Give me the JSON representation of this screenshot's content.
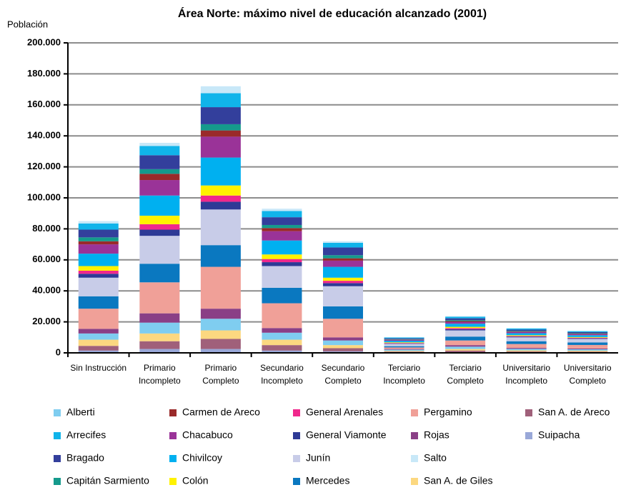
{
  "chart_data": {
    "type": "bar",
    "stacked": true,
    "title": "Área Norte: máximo nivel de educación alcanzado (2001)",
    "y_label": "Población",
    "categories": [
      "Sin Instrucción",
      "Primario Incompleto",
      "Primario Completo",
      "Secundario Incompleto",
      "Secundario Completo",
      "Terciario Incompleto",
      "Terciario Completo",
      "Universitario Incompleto",
      "Universitario Completo"
    ],
    "ylim": [
      0,
      200000
    ],
    "yticks": [
      0,
      {
        "value": 20000,
        "label": "20.000"
      },
      {
        "value": 40000,
        "label": "40.000"
      },
      {
        "value": 60000,
        "label": "60.000"
      },
      {
        "value": 80000,
        "label": "80.000"
      },
      {
        "value": 100000,
        "label": "100.000"
      },
      {
        "value": 120000,
        "label": "120.000"
      },
      {
        "value": 140000,
        "label": "140.000"
      },
      {
        "value": 160000,
        "label": "160.000"
      },
      {
        "value": 180000,
        "label": "180.000"
      },
      {
        "value": 200000,
        "label": "200.000"
      }
    ],
    "grid": true,
    "legend": "bottom",
    "series": [
      {
        "name": "Suipacha",
        "color": "#99a8d8",
        "values": [
          1500,
          2500,
          2500,
          1500,
          1000,
          300,
          500,
          300,
          300
        ]
      },
      {
        "name": "San A. de Areco",
        "color": "#a0607a",
        "values": [
          3000,
          5000,
          6500,
          3500,
          2000,
          500,
          1000,
          600,
          500
        ]
      },
      {
        "name": "San A. de Giles",
        "color": "#fcd880",
        "values": [
          4000,
          5000,
          5500,
          3500,
          2000,
          500,
          1000,
          700,
          600
        ]
      },
      {
        "name": "Alberti",
        "color": "#7fcdf0",
        "values": [
          4000,
          7000,
          7500,
          4500,
          3000,
          800,
          1500,
          1000,
          900
        ]
      },
      {
        "name": "Rojas",
        "color": "#8a3f86",
        "values": [
          3000,
          6000,
          6500,
          3000,
          2000,
          400,
          1000,
          600,
          500
        ]
      },
      {
        "name": "Pergamino",
        "color": "#f0a098",
        "values": [
          13000,
          20000,
          27000,
          16000,
          12000,
          1000,
          3000,
          2500,
          2300
        ]
      },
      {
        "name": "Mercedes",
        "color": "#0a78c0",
        "values": [
          8000,
          12000,
          14000,
          10000,
          8000,
          800,
          2500,
          1800,
          1600
        ]
      },
      {
        "name": "Junín",
        "color": "#c8cce8",
        "values": [
          12000,
          18000,
          23000,
          14000,
          13000,
          1500,
          4000,
          2500,
          2300
        ]
      },
      {
        "name": "General Viamonte",
        "color": "#2e3a96",
        "values": [
          2500,
          4000,
          5000,
          2500,
          2000,
          300,
          800,
          500,
          400
        ]
      },
      {
        "name": "General Arenales",
        "color": "#f0288c",
        "values": [
          2000,
          3500,
          4000,
          2000,
          1500,
          300,
          700,
          400,
          400
        ]
      },
      {
        "name": "Colón",
        "color": "#fff200",
        "values": [
          3000,
          5500,
          6500,
          3000,
          2000,
          400,
          800,
          500,
          400
        ]
      },
      {
        "name": "Chivilcoy",
        "color": "#00b0f0",
        "values": [
          8000,
          13000,
          18000,
          9000,
          7000,
          1000,
          2000,
          1300,
          1200
        ]
      },
      {
        "name": "Chacabuco",
        "color": "#9a3398",
        "values": [
          6000,
          10000,
          13500,
          6000,
          4000,
          600,
          1200,
          800,
          700
        ]
      },
      {
        "name": "Carmen de Areco",
        "color": "#9a2a2a",
        "values": [
          2000,
          4000,
          4000,
          2000,
          1500,
          200,
          500,
          300,
          300
        ]
      },
      {
        "name": "Capitán Sarmiento",
        "color": "#159a8c",
        "values": [
          2500,
          3000,
          4000,
          2000,
          2000,
          300,
          600,
          400,
          300
        ]
      },
      {
        "name": "Bragado",
        "color": "#333f9c",
        "values": [
          5000,
          9000,
          11000,
          5000,
          5000,
          500,
          1200,
          800,
          700
        ]
      },
      {
        "name": "Arrecifes",
        "color": "#10b4ea",
        "values": [
          4000,
          6000,
          9000,
          4000,
          3000,
          500,
          1000,
          700,
          600
        ]
      },
      {
        "name": "Salto",
        "color": "#c8e8f8",
        "values": [
          1500,
          2000,
          4500,
          1500,
          1000,
          200,
          400,
          300,
          200
        ]
      }
    ]
  }
}
